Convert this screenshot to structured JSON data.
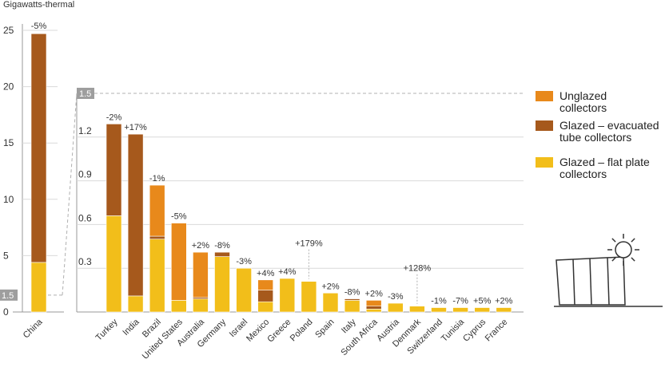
{
  "chart_data": {
    "type": "bar",
    "stacked": true,
    "ylabel": "Gigawatts-thermal",
    "legend_position": "right",
    "colors": {
      "unglazed": "#E8891B",
      "evacuated": "#A6591C",
      "flat": "#F2BE1A",
      "axis": "#999999",
      "grid": "#d9d9d9",
      "dash": "#b0b0b0",
      "tickbox": "#9e9e9e"
    },
    "series": [
      {
        "key": "unglazed",
        "name": "Unglazed collectors",
        "name_lines": [
          "Unglazed",
          "collectors"
        ]
      },
      {
        "key": "evacuated",
        "name": "Glazed – evacuated tube collectors",
        "name_lines": [
          "Glazed – evacuated",
          "tube collectors"
        ]
      },
      {
        "key": "flat",
        "name": "Glazed – flat plate collectors",
        "name_lines": [
          "Glazed – flat plate",
          "collectors"
        ]
      }
    ],
    "main_panel": {
      "ylim": [
        0,
        25
      ],
      "yticks": [
        "0",
        "5",
        "10",
        "15",
        "20",
        "25"
      ],
      "highlight_tick": "1.5",
      "categories": [
        "China"
      ],
      "values": {
        "flat": [
          4.4
        ],
        "evacuated": [
          20.3
        ],
        "unglazed": [
          0
        ]
      },
      "change_labels": [
        "-5%"
      ]
    },
    "inset_panel": {
      "ylim": [
        0,
        1.5
      ],
      "yticks": [
        "0.3",
        "0.6",
        "0.9",
        "1.2",
        "1.5"
      ],
      "categories": [
        "Turkey",
        "India",
        "Brazil",
        "United States",
        "Australia",
        "Germany",
        "Israel",
        "Mexico",
        "Greece",
        "Poland",
        "Spain",
        "Italy",
        "South Africa",
        "Austria",
        "Denmark",
        "Switzerland",
        "Tunisia",
        "Cyprus",
        "France"
      ],
      "values": {
        "flat": [
          0.66,
          0.11,
          0.5,
          0.08,
          0.09,
          0.38,
          0.3,
          0.07,
          0.23,
          0.21,
          0.13,
          0.08,
          0.02,
          0.06,
          0.04,
          0.03,
          0.03,
          0.03,
          0.03
        ],
        "evacuated": [
          0.63,
          1.11,
          0.02,
          0.0,
          0.01,
          0.03,
          0.0,
          0.08,
          0.0,
          0.0,
          0.0,
          0.01,
          0.02,
          0.0,
          0.0,
          0.0,
          0.0,
          0.0,
          0.0
        ],
        "unglazed": [
          0.0,
          0.0,
          0.35,
          0.53,
          0.31,
          0.0,
          0.0,
          0.07,
          0.0,
          0.0,
          0.0,
          0.0,
          0.04,
          0.0,
          0.0,
          0.0,
          0.0,
          0.0,
          0.0
        ]
      },
      "change_labels": [
        "-2%",
        "+17%",
        "-1%",
        "-5%",
        "+2%",
        "-8%",
        "-3%",
        "+4%",
        "+4%",
        "+179%",
        "+2%",
        "-8%",
        "+2%",
        "-3%",
        "+128%",
        "-1%",
        "-7%",
        "+5%",
        "+2%"
      ]
    }
  }
}
